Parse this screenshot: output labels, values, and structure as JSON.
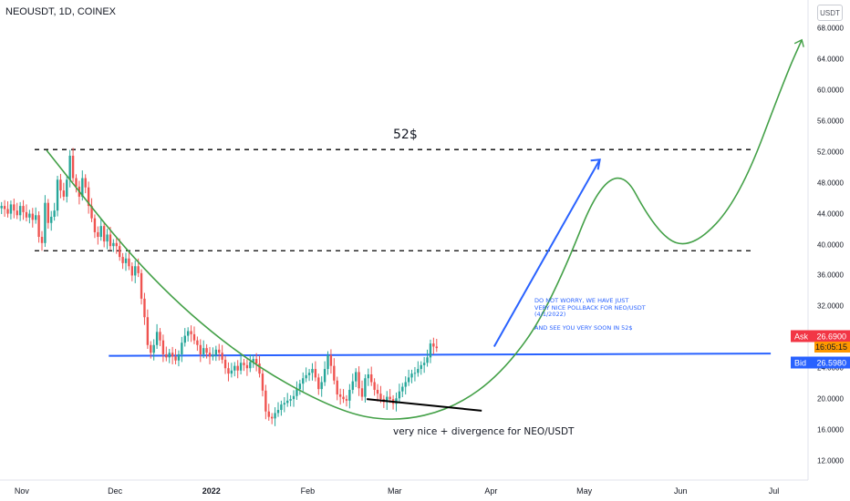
{
  "symbol_title": "NEOUSDT, 1D, COINEX",
  "currency_button": "USDT",
  "chart_data": {
    "type": "candlestick",
    "title": "NEOUSDT, 1D, COINEX",
    "ylim": [
      10,
      70
    ],
    "yticks": [
      "68.0000",
      "64.0000",
      "60.0000",
      "56.0000",
      "52.0000",
      "48.0000",
      "44.0000",
      "40.0000",
      "36.0000",
      "32.0000",
      "28.0000",
      "24.0000",
      "20.0000",
      "16.0000",
      "12.0000"
    ],
    "ytick_values": [
      68,
      64,
      60,
      56,
      52,
      48,
      44,
      40,
      36,
      32,
      28,
      24,
      20,
      16,
      12
    ],
    "xticks": [
      "Nov",
      "Dec",
      "2022",
      "Feb",
      "Mar",
      "Apr",
      "May",
      "Jun",
      "Jul"
    ],
    "xtick_bold": [
      false,
      false,
      true,
      false,
      false,
      false,
      false,
      false,
      false
    ],
    "x_axis_start": "2021-10-25",
    "x_axis_end": "2022-07-12",
    "closes": [
      45.0,
      44.6,
      44.0,
      45.2,
      44.4,
      43.8,
      45.0,
      44.2,
      43.5,
      44.0,
      43.2,
      43.8,
      41.0,
      40.2,
      45.4,
      42.8,
      43.6,
      44.4,
      48.4,
      47.0,
      46.2,
      48.4,
      51.5,
      48.6,
      47.5,
      46.2,
      48.6,
      47.4,
      45.0,
      43.4,
      41.6,
      41.0,
      42.4,
      40.4,
      41.3,
      39.8,
      40.2,
      39.8,
      38.4,
      37.6,
      38.2,
      37.2,
      36.0,
      37.2,
      36.3,
      33.0,
      30.6,
      27.0,
      26.0,
      27.0,
      28.7,
      27.6,
      25.8,
      25.4,
      26.0,
      25.5,
      25.0,
      25.8,
      27.3,
      28.2,
      28.8,
      28.4,
      27.6,
      27.0,
      25.8,
      26.6,
      26.0,
      25.5,
      25.7,
      26.4,
      26.0,
      25.1,
      24.0,
      23.3,
      23.7,
      24.3,
      23.7,
      24.7,
      24.4,
      24.0,
      24.8,
      25.2,
      24.6,
      23.3,
      21.1,
      18.4,
      17.7,
      17.5,
      18.2,
      18.6,
      19.3,
      19.5,
      19.8,
      20.0,
      20.4,
      21.3,
      22.0,
      22.7,
      23.1,
      23.4,
      23.9,
      22.8,
      21.3,
      22.2,
      23.9,
      25.7,
      24.3,
      22.4,
      20.6,
      20.3,
      20.0,
      19.8,
      21.2,
      22.3,
      23.5,
      21.4,
      20.3,
      22.7,
      23.2,
      22.2,
      21.2,
      20.7,
      20.0,
      19.6,
      20.3,
      20.0,
      19.4,
      20.1,
      21.0,
      21.6,
      22.2,
      22.8,
      23.3,
      23.4,
      23.9,
      24.4,
      24.7,
      25.4,
      27.2,
      26.8,
      26.6
    ],
    "levels": [
      {
        "name": "resistance",
        "value": 52.3
      },
      {
        "name": "support",
        "value": 39.2
      }
    ],
    "neckline": {
      "from_date": "2021-11-29",
      "from_price": 25.6,
      "to_date": "2022-06-30",
      "to_price": 25.9
    },
    "divergence_line": {
      "from_date": "2022-02-20",
      "from_price": 20.0,
      "to_date": "2022-03-29",
      "to_price": 18.5
    },
    "ask_price": "26.6900",
    "bid_price": "26.5980",
    "countdown": "16:05:15",
    "ask_label": "Ask",
    "bid_label": "Bid",
    "colors": {
      "up": "#26a69a",
      "down": "#ef5350",
      "ask": "#f23645",
      "bid": "#2962ff",
      "timer": "#ff9800",
      "curve": "#43a047",
      "projection": "#2962ff",
      "neckline": "#2962ff"
    }
  },
  "annotations": {
    "target_label": "52$",
    "projection_note": "DO NOT WORRY, WE HAVE JUST\nVERY NICE POLLBACK FOR NEO/USDT\n(4/1/2022)\n\nAND SEE YOU VERY SOON IN 52$",
    "divergence_note": "very nice + divergence for NEO/USDT"
  }
}
